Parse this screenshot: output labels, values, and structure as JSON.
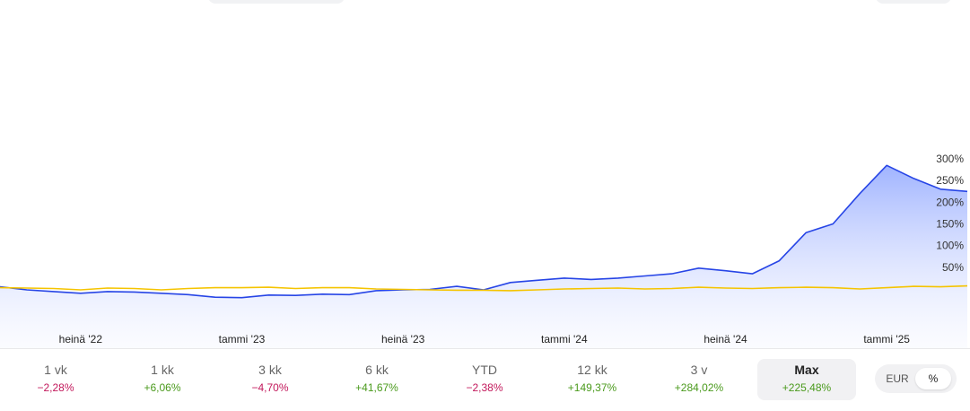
{
  "chart_data": {
    "type": "line",
    "ylabel": "",
    "xlabel": "",
    "y_ticks": [
      50,
      100,
      150,
      200,
      250,
      300
    ],
    "y_tick_labels": [
      "50%",
      "100%",
      "150%",
      "200%",
      "250%",
      "300%"
    ],
    "ylim": [
      -26,
      305
    ],
    "x_ticks": [
      {
        "x": "2022-07",
        "label": "heinä '22"
      },
      {
        "x": "2023-01",
        "label": "tammi '23"
      },
      {
        "x": "2023-07",
        "label": "heinä '23"
      },
      {
        "x": "2024-01",
        "label": "tammi '24"
      },
      {
        "x": "2024-07",
        "label": "heinä '24"
      },
      {
        "x": "2025-01",
        "label": "tammi '25"
      }
    ],
    "xlim": [
      "2022-04",
      "2025-04"
    ],
    "grid": false,
    "series": [
      {
        "color": "#2745e6",
        "fill": true,
        "points": [
          [
            "2022-04",
            5
          ],
          [
            "2022-05",
            -2
          ],
          [
            "2022-06",
            -6
          ],
          [
            "2022-07",
            -10
          ],
          [
            "2022-08",
            -6
          ],
          [
            "2022-09",
            -7
          ],
          [
            "2022-10",
            -10
          ],
          [
            "2022-11",
            -13
          ],
          [
            "2022-12",
            -19
          ],
          [
            "2023-01",
            -20
          ],
          [
            "2023-02",
            -14
          ],
          [
            "2023-03",
            -15
          ],
          [
            "2023-04",
            -12
          ],
          [
            "2023-05",
            -13
          ],
          [
            "2023-06",
            -4
          ],
          [
            "2023-07",
            -2
          ],
          [
            "2023-08",
            -1
          ],
          [
            "2023-09",
            6
          ],
          [
            "2023-10",
            -2
          ],
          [
            "2023-11",
            15
          ],
          [
            "2023-12",
            20
          ],
          [
            "2024-01",
            25
          ],
          [
            "2024-02",
            22
          ],
          [
            "2024-03",
            25
          ],
          [
            "2024-04",
            30
          ],
          [
            "2024-05",
            35
          ],
          [
            "2024-06",
            48
          ],
          [
            "2024-07",
            42
          ],
          [
            "2024-08",
            35
          ],
          [
            "2024-09",
            65
          ],
          [
            "2024-10",
            130
          ],
          [
            "2024-11",
            150
          ],
          [
            "2024-12",
            220
          ],
          [
            "2025-01",
            285
          ],
          [
            "2025-02",
            255
          ],
          [
            "2025-03",
            230
          ],
          [
            "2025-04",
            225
          ]
        ]
      },
      {
        "color": "#f5c400",
        "fill": false,
        "points": [
          [
            "2022-04",
            3
          ],
          [
            "2022-05",
            2
          ],
          [
            "2022-06",
            1
          ],
          [
            "2022-07",
            -2
          ],
          [
            "2022-08",
            2
          ],
          [
            "2022-09",
            1
          ],
          [
            "2022-10",
            -2
          ],
          [
            "2022-11",
            1
          ],
          [
            "2022-12",
            3
          ],
          [
            "2023-01",
            3
          ],
          [
            "2023-02",
            4
          ],
          [
            "2023-03",
            1
          ],
          [
            "2023-04",
            3
          ],
          [
            "2023-05",
            3
          ],
          [
            "2023-06",
            0
          ],
          [
            "2023-07",
            -1
          ],
          [
            "2023-08",
            -2
          ],
          [
            "2023-09",
            -3
          ],
          [
            "2023-10",
            -3
          ],
          [
            "2023-11",
            -4
          ],
          [
            "2023-12",
            -2
          ],
          [
            "2024-01",
            0
          ],
          [
            "2024-02",
            1
          ],
          [
            "2024-03",
            2
          ],
          [
            "2024-04",
            0
          ],
          [
            "2024-05",
            1
          ],
          [
            "2024-06",
            4
          ],
          [
            "2024-07",
            2
          ],
          [
            "2024-08",
            1
          ],
          [
            "2024-09",
            3
          ],
          [
            "2024-10",
            4
          ],
          [
            "2024-11",
            3
          ],
          [
            "2024-12",
            0
          ],
          [
            "2025-01",
            3
          ],
          [
            "2025-02",
            6
          ],
          [
            "2025-03",
            5
          ],
          [
            "2025-04",
            7
          ]
        ]
      }
    ]
  },
  "periods": [
    {
      "label": "1 vk",
      "value": "−2,28%",
      "positive": false
    },
    {
      "label": "1 kk",
      "value": "+6,06%",
      "positive": true
    },
    {
      "label": "3 kk",
      "value": "−4,70%",
      "positive": false
    },
    {
      "label": "6 kk",
      "value": "+41,67%",
      "positive": true
    },
    {
      "label": "YTD",
      "value": "−2,38%",
      "positive": false
    },
    {
      "label": "12 kk",
      "value": "+149,37%",
      "positive": true
    },
    {
      "label": "3 v",
      "value": "+284,02%",
      "positive": true
    },
    {
      "label": "Max",
      "value": "+225,48%",
      "positive": true,
      "selected": true
    }
  ],
  "toggle": {
    "eur": "EUR",
    "pct": "%",
    "selected": "pct"
  },
  "colors": {
    "positive": "#4a9a1c",
    "negative": "#c2185b",
    "line_main": "#2745e6",
    "line_compare": "#f5c400"
  }
}
